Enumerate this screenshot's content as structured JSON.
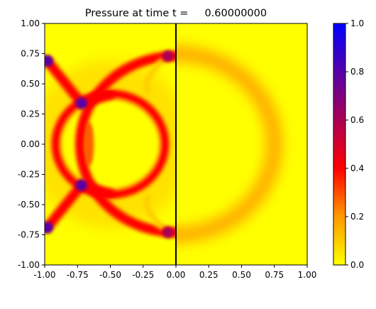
{
  "chart_data": {
    "type": "heatmap",
    "title": "Pressure at time t =     0.60000000",
    "xlim": [
      -1.0,
      1.0
    ],
    "ylim": [
      -1.0,
      1.0
    ],
    "x_ticks": [
      "-1.00",
      "-0.75",
      "-0.50",
      "-0.25",
      "0.00",
      "0.25",
      "0.50",
      "0.75",
      "1.00"
    ],
    "y_ticks": [
      "1.00",
      "0.75",
      "0.50",
      "0.25",
      "0.00",
      "-0.25",
      "-0.50",
      "-0.75",
      "-1.00"
    ],
    "x_tick_values": [
      -1.0,
      -0.75,
      -0.5,
      -0.25,
      0.0,
      0.25,
      0.5,
      0.75,
      1.0
    ],
    "y_tick_values": [
      1.0,
      0.75,
      0.5,
      0.25,
      0.0,
      -0.25,
      -0.5,
      -0.75,
      -1.0
    ],
    "colorbar": {
      "range": [
        0.0,
        1.0
      ],
      "ticks": [
        "1.0",
        "0.8",
        "0.6",
        "0.4",
        "0.2",
        "0.0"
      ],
      "tick_values": [
        1.0,
        0.8,
        0.6,
        0.4,
        0.2,
        0.0
      ],
      "colors": {
        "0.0": "#ffff00",
        "0.2": "#ff9900",
        "0.4": "#ff0000",
        "0.6": "#aa0055",
        "0.8": "#5500aa",
        "1.0": "#0000ff"
      }
    },
    "grid": false,
    "divider_line_x": 0.0,
    "features": {
      "background_pressure": 0.0,
      "left_half_structures": [
        {
          "kind": "ring",
          "cx": -0.5,
          "cy": 0.0,
          "r": 0.41,
          "value": 0.4
        },
        {
          "kind": "arc",
          "cx": 0.0,
          "cy": 0.0,
          "r": 0.73,
          "value": 0.42
        },
        {
          "kind": "hot_spot",
          "x": -0.72,
          "y": 0.34,
          "value": 0.95
        },
        {
          "kind": "hot_spot",
          "x": -0.72,
          "y": -0.34,
          "value": 0.95
        },
        {
          "kind": "hot_spot",
          "x": -0.98,
          "y": 0.69,
          "value": 0.95
        },
        {
          "kind": "hot_spot",
          "x": -0.98,
          "y": -0.69,
          "value": 0.95
        },
        {
          "kind": "hot_spot",
          "x": -0.06,
          "y": 0.73,
          "value": 0.75
        },
        {
          "kind": "hot_spot",
          "x": -0.06,
          "y": -0.73,
          "value": 0.75
        }
      ],
      "right_half_structures": [
        {
          "kind": "arc",
          "cx": 0.0,
          "cy": 0.0,
          "r": 0.75,
          "value": 0.2
        }
      ]
    }
  }
}
